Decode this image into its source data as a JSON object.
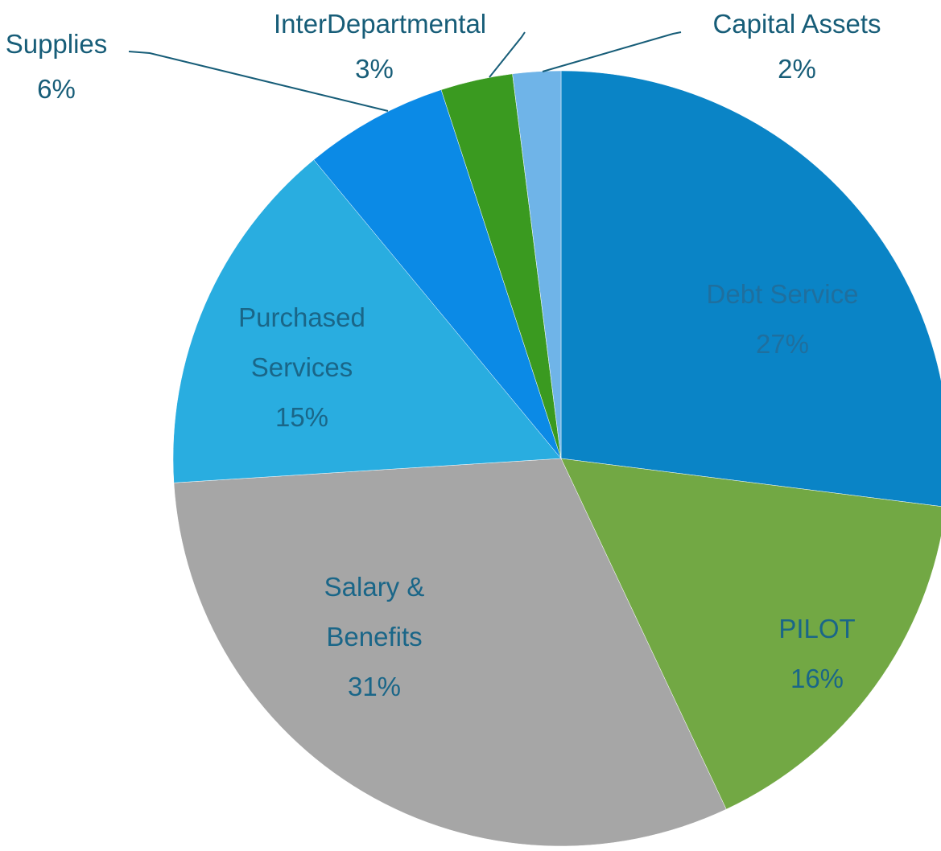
{
  "chart_data": {
    "type": "pie",
    "categories": [
      "Debt Service",
      "PILOT",
      "Salary & Benefits",
      "Purchased Services",
      "Supplies",
      "InterDepartmental",
      "Capital Assets"
    ],
    "values": [
      27,
      16,
      31,
      15,
      6,
      3,
      2
    ],
    "value_labels": [
      "27%",
      "16%",
      "31%",
      "15%",
      "6%",
      "3%",
      "2%"
    ],
    "colors": [
      "#0a84c6",
      "#72a844",
      "#a6a6a6",
      "#29ade0",
      "#0b8ae6",
      "#3a9a20",
      "#6fb4e8"
    ]
  }
}
